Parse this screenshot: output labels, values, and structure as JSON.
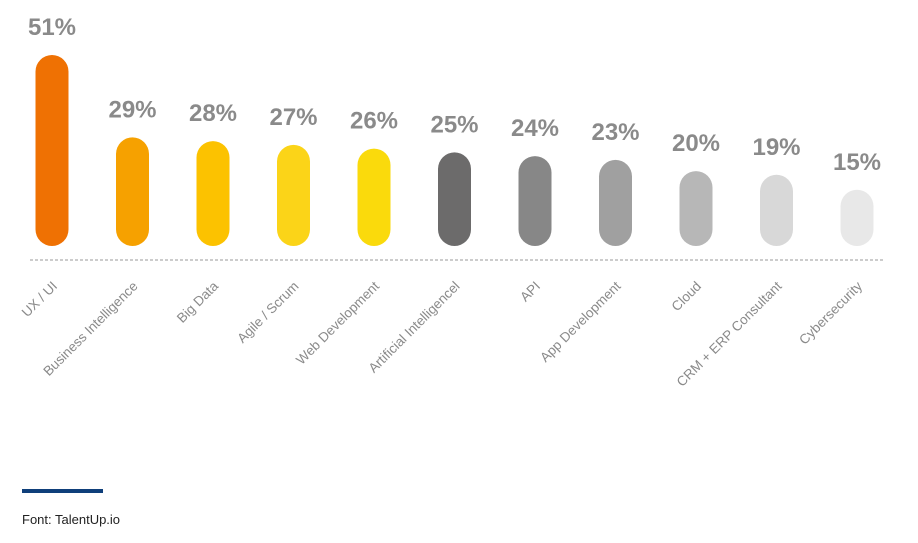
{
  "chart_data": {
    "type": "bar",
    "categories": [
      "UX / UI",
      "Business Intelligence",
      "Big Data",
      "Agile / Scrum",
      "Web Development",
      "Artificial Intelligencel",
      "API",
      "App Development",
      "Cloud",
      "CRM + ERP Consultant",
      "Cybersecurity"
    ],
    "values": [
      51,
      29,
      28,
      27,
      26,
      25,
      24,
      23,
      20,
      19,
      15
    ],
    "value_labels": [
      "51%",
      "29%",
      "28%",
      "27%",
      "26%",
      "25%",
      "24%",
      "23%",
      "20%",
      "19%",
      "15%"
    ],
    "colors": [
      "#ef7103",
      "#f6a100",
      "#fcc200",
      "#fbd418",
      "#fada0c",
      "#6c6b6b",
      "#878787",
      "#a0a0a0",
      "#b7b7b7",
      "#d8d8d8",
      "#e8e8e8"
    ],
    "title": "",
    "xlabel": "",
    "ylabel": "",
    "ylim": [
      0,
      51
    ],
    "grid": false,
    "baseline": "dashed"
  },
  "source": {
    "text": "Font: TalentUp.io",
    "rule_color": "#0f3f7a"
  }
}
